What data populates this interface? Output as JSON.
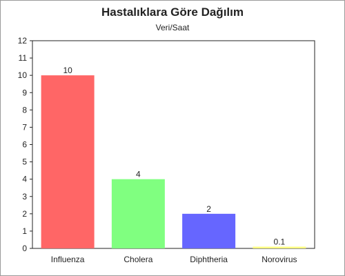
{
  "chart_data": {
    "type": "bar",
    "title": "Hastalıklara Göre Dağılım",
    "subtitle": "Veri/Saat",
    "categories": [
      "Influenza",
      "Cholera",
      "Diphtheria",
      "Norovirus"
    ],
    "values": [
      10,
      4,
      2,
      0.1
    ],
    "value_labels": [
      "10",
      "4",
      "2",
      "0.1"
    ],
    "colors": [
      "#ff6666",
      "#80ff80",
      "#6666ff",
      "#ffff80"
    ],
    "ylim": [
      0,
      12
    ],
    "yticks": [
      0,
      1,
      2,
      3,
      4,
      5,
      6,
      7,
      8,
      9,
      10,
      11,
      12
    ],
    "xlabel": "",
    "ylabel": "",
    "grid": false,
    "legend": "none"
  }
}
